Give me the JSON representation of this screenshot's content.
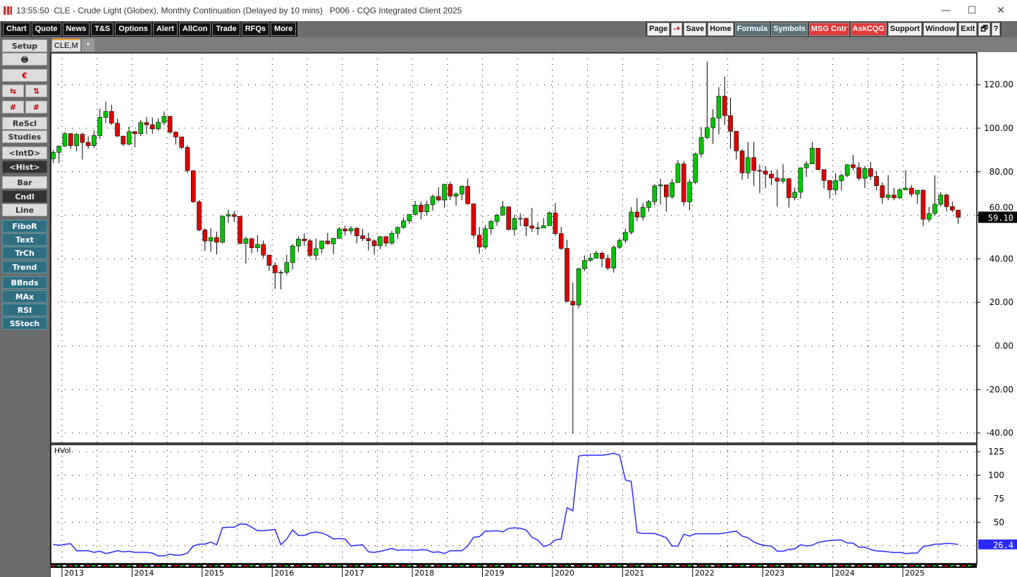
{
  "window": {
    "time": "13:55:50",
    "title": "CLE - Crude Light (Globex), Monthly Continuation (Delayed by 10 mins)   P006 - CQG Integrated Client 2025",
    "minimize_icon": "minimize-icon",
    "maximize_icon": "maximize-icon",
    "close_icon": "close-icon"
  },
  "toolbar_left": [
    "Chart",
    "Quote",
    "News",
    "T&S",
    "Options",
    "Alert",
    "AllCon",
    "Trade",
    "RFQs",
    "More"
  ],
  "toolbar_right": [
    {
      "label": "Page",
      "style": "light"
    },
    {
      "label": "-+",
      "style": "light"
    },
    {
      "label": "Save",
      "style": "light"
    },
    {
      "label": "Home",
      "style": "light"
    },
    {
      "label": "Formula",
      "style": "slate"
    },
    {
      "label": "Symbols",
      "style": "slate"
    },
    {
      "label": "MSG Cntr",
      "style": "red"
    },
    {
      "label": "AskCQG",
      "style": "red"
    },
    {
      "label": "Support",
      "style": "light"
    },
    {
      "label": "Window",
      "style": "light"
    },
    {
      "label": "Exit",
      "style": "light"
    },
    {
      "label": "🗗",
      "style": "light"
    },
    {
      "label": "?",
      "style": "light"
    }
  ],
  "tabs": {
    "active": "CLE,M",
    "add": "+"
  },
  "sidebar": {
    "setup": "Setup",
    "print_icon": "🖶",
    "cqg_icon": "€",
    "resc": "ReScl",
    "studies": "Studies",
    "intd": "<IntD>",
    "hist": "<Hist>",
    "bar": "Bar",
    "cndl": "Cndl",
    "line": "Line",
    "tools": [
      "FiboR",
      "Text",
      "TrCh",
      "Trend"
    ],
    "studies_list": [
      "BBnds",
      "MAx",
      "RSI",
      "SStoch"
    ]
  },
  "colors": {
    "up": "#00c800",
    "down": "#e00000",
    "hvol": "#2a2aff",
    "last_price_bg": "#000000",
    "last_hvol_bg": "#2a2aff"
  },
  "chart_data": [
    {
      "type": "candlestick",
      "symbol": "CLE,M",
      "interval": "monthly",
      "x_start": "2012-11",
      "year_labels": [
        "2013",
        "2014",
        "2015",
        "2016",
        "2017",
        "2018",
        "2019",
        "2020",
        "2021",
        "2022",
        "2023",
        "2024",
        "2025"
      ],
      "y_ticks": [
        "120.00",
        "100.00",
        "80.00",
        "60.00",
        "40.00",
        "20.00",
        "0.00",
        "-20.00",
        "-40.00"
      ],
      "ylim": [
        -40,
        130
      ],
      "last_price": "59.10",
      "grid": true,
      "open": [
        86,
        88.9,
        91.8,
        97.5,
        92.0,
        97.2,
        93.5,
        92.0,
        96.6,
        105.0,
        107.7,
        102.3,
        96.4,
        92.7,
        98.4,
        97.5,
        102.6,
        101.6,
        99.7,
        102.7,
        105.4,
        98.2,
        96.0,
        91.2,
        80.5,
        66.2,
        53.3,
        48.2,
        49.8,
        47.6,
        59.6,
        60.3,
        59.5,
        47.1,
        49.2,
        45.1,
        46.6,
        41.7,
        37.0,
        33.6,
        33.8,
        38.3,
        45.9,
        49.1,
        48.3,
        41.6,
        44.7,
        48.2,
        46.9,
        49.4,
        53.7,
        52.8,
        54.0,
        50.6,
        49.3,
        48.3,
        46.0,
        50.2,
        47.2,
        51.7,
        54.4,
        57.4,
        60.4,
        64.7,
        61.6,
        64.9,
        68.6,
        67.0,
        74.2,
        68.8,
        69.8,
        73.3,
        65.3,
        50.9,
        45.4,
        53.8,
        57.2,
        60.1,
        63.9,
        53.5,
        58.5,
        58.6,
        55.1,
        54.1,
        54.2,
        55.2,
        61.1,
        51.6,
        44.8,
        20.5,
        18.8,
        35.5,
        39.3,
        40.3,
        42.6,
        40.2,
        35.8,
        45.3,
        48.5,
        52.2,
        61.5,
        59.2,
        63.6,
        66.3,
        73.5,
        74.0,
        68.5,
        75.0,
        83.6,
        66.2,
        75.2,
        88.2,
        95.7,
        100.3,
        104.7,
        114.7,
        105.8,
        98.6,
        89.6,
        79.5,
        86.5,
        80.6,
        80.3,
        78.9,
        77.1,
        75.7,
        76.8,
        68.1,
        70.6,
        81.8,
        83.6,
        90.8,
        81.0,
        76.0,
        71.7,
        75.9,
        78.3,
        83.2,
        81.9,
        77.0,
        81.5,
        77.9,
        73.6,
        68.2,
        69.3,
        68.0,
        71.7,
        72.5,
        69.8,
        71.5,
        58.2,
        60.8,
        65.1,
        69.3,
        64.0,
        62.4
      ],
      "high": [
        90,
        92,
        98.2,
        97.8,
        97.8,
        97.9,
        96.2,
        99,
        109,
        112.2,
        110.7,
        104.4,
        95.5,
        100.8,
        98.8,
        103.8,
        105.2,
        104.9,
        104.5,
        107.7,
        105.7,
        98.5,
        95.9,
        92.1,
        79.8,
        67,
        54,
        54.2,
        52.5,
        59.9,
        62.6,
        62,
        59.7,
        50,
        49.6,
        50.9,
        48.4,
        41.9,
        38.4,
        34.8,
        41.9,
        46.8,
        50.2,
        51.7,
        49,
        49.4,
        48.4,
        51.9,
        49.6,
        54.5,
        55.2,
        55,
        54.6,
        53.8,
        52,
        48.9,
        50.4,
        50.4,
        52.9,
        54.8,
        59,
        60.5,
        66.7,
        66.3,
        66.6,
        69.6,
        72.9,
        74.5,
        75.3,
        70.6,
        73.8,
        76.9,
        64.3,
        54.6,
        55.4,
        57.8,
        60.7,
        66.6,
        63.8,
        60.2,
        60.9,
        58.8,
        63.4,
        56.9,
        58.6,
        61.9,
        65.7,
        54.7,
        48.7,
        29.1,
        35.7,
        41.6,
        42.5,
        43.8,
        43.4,
        41.9,
        46.3,
        49.4,
        53.9,
        63.8,
        67.9,
        65.5,
        67,
        74.4,
        76.9,
        74,
        76.7,
        85.4,
        84.9,
        76.4,
        88.8,
        100.5,
        130.5,
        108.8,
        118.9,
        123.7,
        114,
        97.7,
        90.4,
        93.6,
        93.7,
        83.3,
        82.7,
        80.6,
        81,
        83.5,
        77.1,
        72.7,
        82,
        84.9,
        93.7,
        90,
        79.8,
        76.2,
        79.3,
        79.2,
        83.5,
        87.7,
        84.3,
        82.6,
        84.5,
        80.2,
        75.2,
        78.5,
        72.5,
        72.5,
        80.8,
        73.9,
        71.7,
        72,
        63.9,
        78.4,
        70.5,
        69.9,
        66.4,
        62.5
      ],
      "low": [
        84,
        84,
        91.5,
        90.6,
        89.5,
        85.6,
        90.5,
        91,
        95,
        102.2,
        101.5,
        96,
        91.8,
        92.2,
        91.2,
        96.4,
        97.4,
        97.4,
        98.9,
        101.4,
        97.5,
        92.5,
        90.4,
        79.4,
        65.7,
        52.7,
        43.6,
        43.2,
        42,
        47.1,
        56.5,
        57,
        46.7,
        37.8,
        42.6,
        43.2,
        40.4,
        34.5,
        26.2,
        26,
        32.5,
        35.2,
        43,
        46,
        40.6,
        39.2,
        42.5,
        46.6,
        42.2,
        49.5,
        50.7,
        51.2,
        47.1,
        48.2,
        43.8,
        42,
        44.4,
        45.6,
        46.5,
        49.1,
        53.8,
        56.1,
        59.9,
        58.1,
        59.9,
        62.1,
        66.4,
        63.6,
        67,
        64.4,
        66.9,
        64.9,
        49.4,
        42.4,
        44.4,
        51.2,
        55.2,
        60.1,
        53,
        50.6,
        55,
        50.5,
        52.3,
        50.9,
        54.8,
        55.3,
        50.6,
        44,
        20,
        -40.3,
        17.3,
        34.4,
        38.7,
        40.6,
        36.1,
        34.9,
        33.6,
        44.5,
        47.2,
        51.2,
        57.3,
        57.6,
        61.6,
        64.6,
        65,
        61.7,
        67.6,
        74.9,
        64.4,
        62.4,
        74.3,
        86.6,
        95.1,
        92.9,
        97.2,
        101.5,
        90.6,
        85.7,
        76.3,
        76.7,
        73.6,
        70.1,
        72.5,
        73.8,
        64.1,
        74.6,
        63.6,
        66.8,
        67.7,
        77.6,
        83.5,
        80.6,
        72.4,
        67.7,
        69.3,
        71.4,
        77.6,
        80.7,
        76,
        72.5,
        76.2,
        71.5,
        65.3,
        66.9,
        66.9,
        67.5,
        72.2,
        68.6,
        65.2,
        55.1,
        56.9,
        59.7,
        64.2,
        61.9,
        61.5,
        56
      ],
      "close": [
        88.9,
        91.8,
        97.5,
        92.0,
        97.2,
        93.5,
        92.0,
        96.6,
        105.0,
        107.7,
        102.3,
        96.4,
        92.7,
        98.4,
        97.5,
        102.6,
        101.6,
        99.7,
        102.7,
        105.4,
        98.2,
        96.0,
        91.2,
        80.5,
        66.2,
        53.3,
        48.2,
        49.8,
        47.6,
        59.6,
        60.3,
        59.5,
        47.1,
        49.2,
        45.1,
        46.6,
        41.7,
        37.0,
        33.6,
        33.8,
        38.3,
        45.9,
        49.1,
        48.3,
        41.6,
        44.7,
        48.2,
        46.9,
        49.4,
        53.7,
        52.8,
        54.0,
        50.6,
        49.3,
        48.3,
        46.0,
        50.2,
        47.2,
        51.7,
        54.4,
        57.4,
        60.4,
        64.7,
        61.6,
        64.9,
        68.6,
        67.0,
        74.2,
        68.8,
        69.8,
        73.3,
        65.3,
        50.9,
        45.4,
        53.8,
        57.2,
        60.1,
        63.9,
        53.5,
        58.5,
        58.6,
        55.1,
        54.1,
        54.2,
        55.2,
        61.1,
        51.6,
        44.8,
        20.5,
        18.8,
        35.5,
        39.3,
        40.3,
        42.6,
        40.2,
        35.8,
        45.3,
        48.5,
        52.2,
        61.5,
        59.2,
        63.6,
        66.3,
        73.5,
        74.0,
        68.5,
        75.0,
        83.6,
        66.2,
        75.2,
        88.2,
        95.7,
        100.3,
        104.7,
        114.7,
        105.8,
        98.6,
        89.6,
        79.5,
        86.5,
        80.6,
        80.3,
        78.9,
        77.1,
        75.7,
        76.8,
        68.1,
        70.6,
        81.8,
        83.6,
        90.8,
        81.0,
        76.0,
        71.7,
        75.9,
        78.3,
        83.2,
        81.9,
        77.0,
        81.5,
        77.9,
        73.6,
        68.2,
        69.3,
        68.0,
        71.7,
        72.5,
        69.8,
        71.5,
        58.2,
        60.8,
        65.1,
        69.3,
        64.0,
        62.4,
        59.1
      ]
    },
    {
      "type": "line",
      "name": "HVol",
      "y_ticks": [
        "125",
        "100",
        "75",
        "50"
      ],
      "ylim": [
        0,
        130
      ],
      "last_value": "26.4",
      "values": [
        26.5,
        25.5,
        26.5,
        27.2,
        19.7,
        19.7,
        19.7,
        18,
        19.2,
        16.7,
        18,
        19.7,
        18.5,
        19,
        18,
        18,
        18,
        17.2,
        14.2,
        14.2,
        16,
        14.8,
        15.2,
        17.2,
        24.7,
        26.7,
        26.7,
        29,
        26,
        44.2,
        44.7,
        44.7,
        48,
        48,
        44.7,
        41,
        41,
        41.7,
        42.2,
        26,
        32.2,
        41.7,
        36,
        36,
        38.5,
        39.7,
        38.5,
        36,
        32.2,
        32.7,
        32.2,
        24.7,
        25.5,
        26,
        18.5,
        18,
        19,
        20.5,
        22.2,
        20.2,
        20.5,
        20.5,
        20,
        20.7,
        20.5,
        18,
        18.5,
        16.7,
        19.7,
        19.7,
        19.7,
        24.7,
        34,
        34.7,
        40.5,
        40.5,
        41,
        39.7,
        43.5,
        44,
        43.5,
        41.7,
        34,
        31,
        24.2,
        26,
        31.2,
        32.2,
        65.4,
        62.2,
        120.3,
        121.3,
        121.3,
        121.3,
        121.3,
        122,
        123.3,
        121.3,
        95,
        93.3,
        39.2,
        38,
        38,
        38,
        36,
        33.4,
        24.7,
        24.7,
        37.2,
        35.2,
        37.7,
        37.7,
        37.7,
        37.7,
        37.7,
        38.5,
        39.7,
        40.5,
        35.2,
        33.4,
        29,
        26.5,
        25.2,
        24.7,
        19.2,
        19.2,
        21,
        21.7,
        26,
        24.7,
        25.5,
        28.5,
        29.7,
        30.5,
        31,
        31,
        28,
        27.7,
        23.5,
        23.5,
        21,
        19.5,
        19.2,
        18.5,
        17.7,
        18,
        16.7,
        17.2,
        17.2,
        24.2,
        25.2,
        26.7,
        26.7,
        27.5,
        27.2,
        26.4
      ]
    }
  ]
}
